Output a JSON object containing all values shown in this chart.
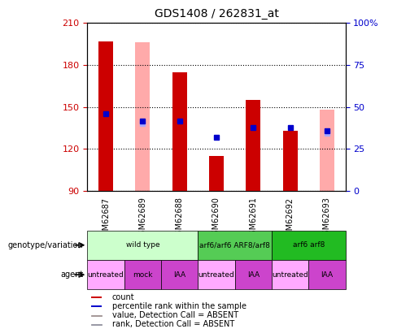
{
  "title": "GDS1408 / 262831_at",
  "samples": [
    "GSM62687",
    "GSM62689",
    "GSM62688",
    "GSM62690",
    "GSM62691",
    "GSM62692",
    "GSM62693"
  ],
  "ymin": 90,
  "ymax": 210,
  "yticks_left": [
    90,
    120,
    150,
    180,
    210
  ],
  "yticks_right": [
    0,
    25,
    50,
    75,
    100
  ],
  "yright_min": 0,
  "yright_max": 100,
  "bar_bottom": 90,
  "red_bars": {
    "GSM62687": 197,
    "GSM62689": null,
    "GSM62688": 175,
    "GSM62690": 115,
    "GSM62691": 155,
    "GSM62692": 133,
    "GSM62693": null
  },
  "pink_bars": {
    "GSM62687": null,
    "GSM62689": 196,
    "GSM62688": null,
    "GSM62690": null,
    "GSM62691": null,
    "GSM62692": null,
    "GSM62693": 148
  },
  "blue_dots": {
    "GSM62687": 145,
    "GSM62689": 140,
    "GSM62688": 140,
    "GSM62690": 128,
    "GSM62691": 135,
    "GSM62692": 135,
    "GSM62693": 133
  },
  "light_blue_dots": {
    "GSM62687": null,
    "GSM62689": 138,
    "GSM62688": null,
    "GSM62690": null,
    "GSM62691": null,
    "GSM62692": null,
    "GSM62693": 131
  },
  "red_bar_color": "#cc0000",
  "pink_bar_color": "#ffaaaa",
  "blue_dot_color": "#0000cc",
  "light_blue_dot_color": "#aaaaff",
  "genotype_groups": [
    {
      "label": "wild type",
      "start": 0,
      "end": 3,
      "color": "#ccffcc"
    },
    {
      "label": "arf6/arf6 ARF8/arf8",
      "start": 3,
      "end": 5,
      "color": "#55cc55"
    },
    {
      "label": "arf6 arf8",
      "start": 5,
      "end": 7,
      "color": "#22bb22"
    }
  ],
  "agent_groups": [
    {
      "label": "untreated",
      "start": 0,
      "end": 1,
      "color": "#ffaaff"
    },
    {
      "label": "mock",
      "start": 1,
      "end": 2,
      "color": "#cc44cc"
    },
    {
      "label": "IAA",
      "start": 2,
      "end": 3,
      "color": "#cc44cc"
    },
    {
      "label": "untreated",
      "start": 3,
      "end": 4,
      "color": "#ffaaff"
    },
    {
      "label": "IAA",
      "start": 4,
      "end": 5,
      "color": "#cc44cc"
    },
    {
      "label": "untreated",
      "start": 5,
      "end": 6,
      "color": "#ffaaff"
    },
    {
      "label": "IAA",
      "start": 6,
      "end": 7,
      "color": "#cc44cc"
    }
  ],
  "legend_items": [
    {
      "label": "count",
      "color": "#cc0000"
    },
    {
      "label": "percentile rank within the sample",
      "color": "#0000cc"
    },
    {
      "label": "value, Detection Call = ABSENT",
      "color": "#ffaaaa"
    },
    {
      "label": "rank, Detection Call = ABSENT",
      "color": "#aaaaff"
    }
  ],
  "fig_width": 4.88,
  "fig_height": 4.05,
  "dpi": 100
}
